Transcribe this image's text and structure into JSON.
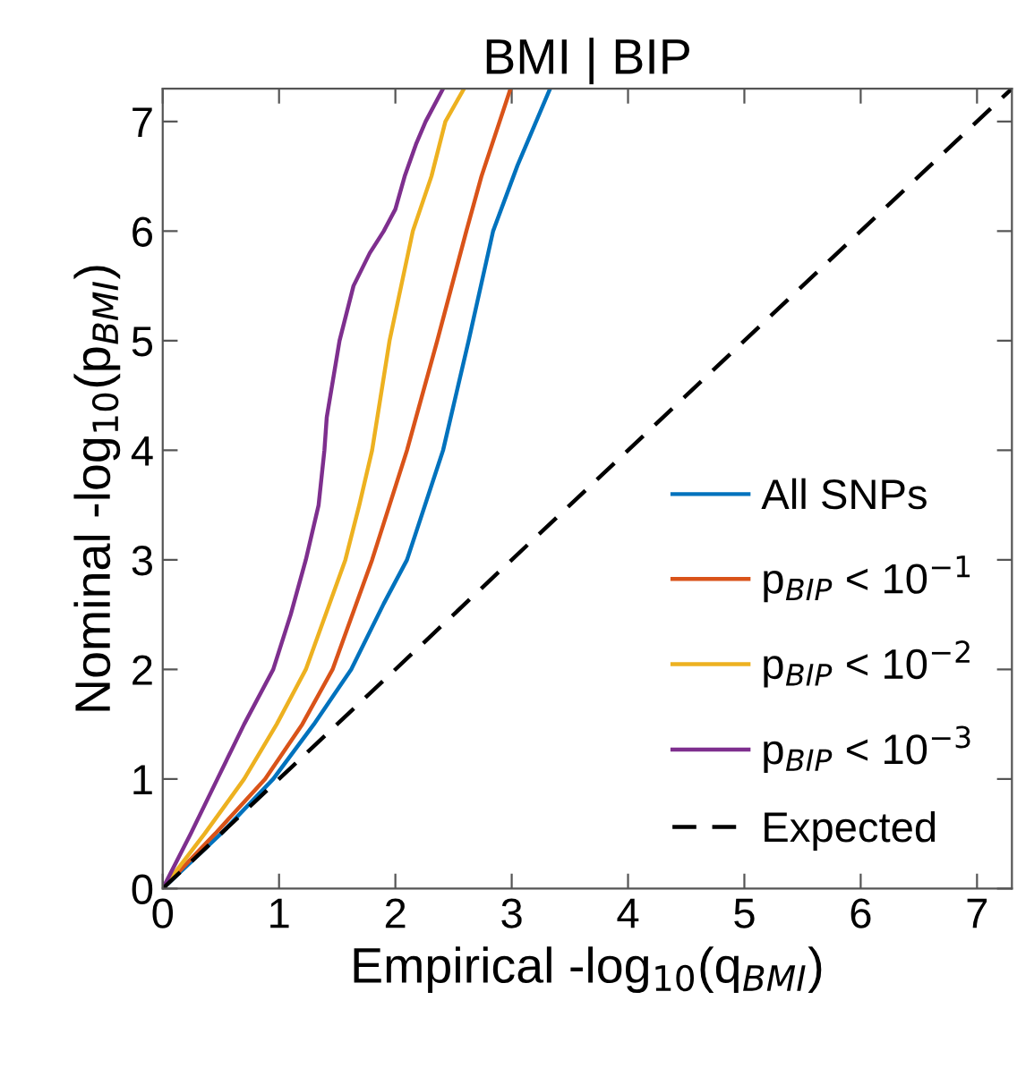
{
  "chart_data": {
    "type": "line",
    "title": "BMI | BIP",
    "xlabel": "Empirical -log$_{10}$(q$_{BMI}$)",
    "ylabel": "Nominal -log$_{10}$(p$_{BMI}$)",
    "xlim": [
      0,
      7.3
    ],
    "ylim": [
      0,
      7.3
    ],
    "xticks": [
      0,
      1,
      2,
      3,
      4,
      5,
      6,
      7
    ],
    "yticks": [
      0,
      1,
      2,
      3,
      4,
      5,
      6,
      7
    ],
    "grid": false,
    "legend": "bottom right",
    "series": [
      {
        "name": "All SNPs",
        "color": "#0072bd",
        "x": [
          0,
          0.5,
          0.95,
          1.3,
          1.62,
          1.9,
          2.1,
          2.41,
          2.63,
          2.84,
          3.05,
          3.33
        ],
        "values": [
          0,
          0.5,
          1.0,
          1.5,
          2,
          2.6,
          3,
          4,
          5,
          6,
          6.6,
          7.3
        ]
      },
      {
        "name": "p$_{BIP}$ < 10$^{−1}$",
        "color": "#d95319",
        "x": [
          0,
          0.45,
          0.88,
          1.2,
          1.46,
          1.8,
          2.1,
          2.36,
          2.61,
          2.74,
          2.99
        ],
        "values": [
          0,
          0.5,
          1,
          1.5,
          2,
          3,
          4,
          5,
          6,
          6.5,
          7.3
        ]
      },
      {
        "name": "p$_{BIP}$ < 10$^{−2}$",
        "color": "#edb120",
        "x": [
          0,
          0.36,
          0.7,
          0.98,
          1.23,
          1.57,
          1.69,
          1.8,
          1.95,
          2.15,
          2.31,
          2.43,
          2.59
        ],
        "values": [
          0,
          0.5,
          1,
          1.5,
          2,
          3,
          3.5,
          4,
          5,
          6,
          6.5,
          7,
          7.3
        ]
      },
      {
        "name": "p$_{BIP}$ < 10$^{−3}$",
        "color": "#7e2f8e",
        "x": [
          0,
          0.24,
          0.47,
          0.7,
          0.95,
          1.1,
          1.23,
          1.34,
          1.39,
          1.41,
          1.52,
          1.64,
          1.78,
          1.9,
          2.0,
          2.08,
          2.18,
          2.26,
          2.41
        ],
        "values": [
          0,
          0.5,
          1,
          1.5,
          2,
          2.5,
          3,
          3.5,
          4,
          4.3,
          5,
          5.5,
          5.8,
          6,
          6.2,
          6.5,
          6.8,
          7,
          7.3
        ]
      },
      {
        "name": "Expected",
        "color": "#000000",
        "line_style": "dashed",
        "x": [
          0,
          7.3
        ],
        "values": [
          0,
          7.3
        ]
      }
    ]
  }
}
